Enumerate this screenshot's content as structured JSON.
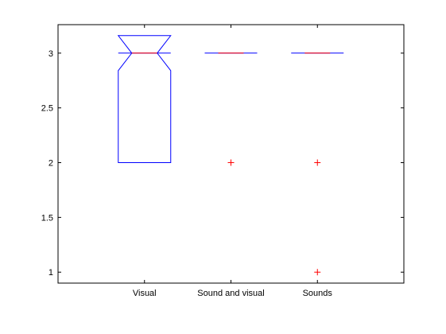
{
  "chart_data": {
    "type": "boxplot",
    "title": "",
    "xlabel": "",
    "ylabel": "",
    "categories": [
      "Visual",
      "Sound and visual",
      "Sounds"
    ],
    "ylim": [
      0.9,
      3.26
    ],
    "yticks": [
      1,
      1.5,
      2,
      2.5,
      3
    ],
    "ytick_labels": [
      "1",
      "1.5",
      "2",
      "2.5",
      "3"
    ],
    "grid": false,
    "notched": true,
    "boxes": [
      {
        "category": "Visual",
        "q1": 2,
        "median": 3,
        "q3": 3,
        "notch_low": 2.84,
        "notch_high": 3.16,
        "whisker_low": 2,
        "whisker_high": 3,
        "outliers": []
      },
      {
        "category": "Sound and visual",
        "q1": 3,
        "median": 3,
        "q3": 3,
        "notch_low": 3,
        "notch_high": 3,
        "whisker_low": 3,
        "whisker_high": 3,
        "outliers": [
          2
        ]
      },
      {
        "category": "Sounds",
        "q1": 3,
        "median": 3,
        "q3": 3,
        "notch_low": 3,
        "notch_high": 3,
        "whisker_low": 3,
        "whisker_high": 3,
        "outliers": [
          2,
          1
        ]
      }
    ],
    "colors": {
      "box": "#0000ff",
      "median": "#ff0000",
      "outlier": "#ff0000",
      "axes": "#000000"
    }
  }
}
